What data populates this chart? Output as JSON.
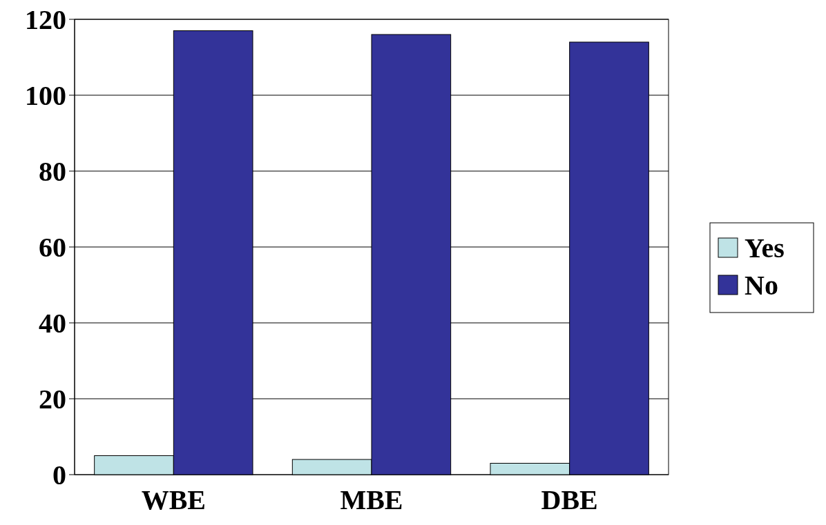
{
  "chart_data": {
    "type": "bar",
    "categories": [
      "WBE",
      "MBE",
      "DBE"
    ],
    "series": [
      {
        "name": "Yes",
        "color": "#bfe3e6",
        "values": [
          5,
          4,
          3
        ]
      },
      {
        "name": "No",
        "color": "#333399",
        "values": [
          117,
          116,
          114
        ]
      }
    ],
    "ylim": [
      0,
      120
    ],
    "yticks": [
      0,
      20,
      40,
      60,
      80,
      100,
      120
    ],
    "grid": "y",
    "legend": "right"
  }
}
